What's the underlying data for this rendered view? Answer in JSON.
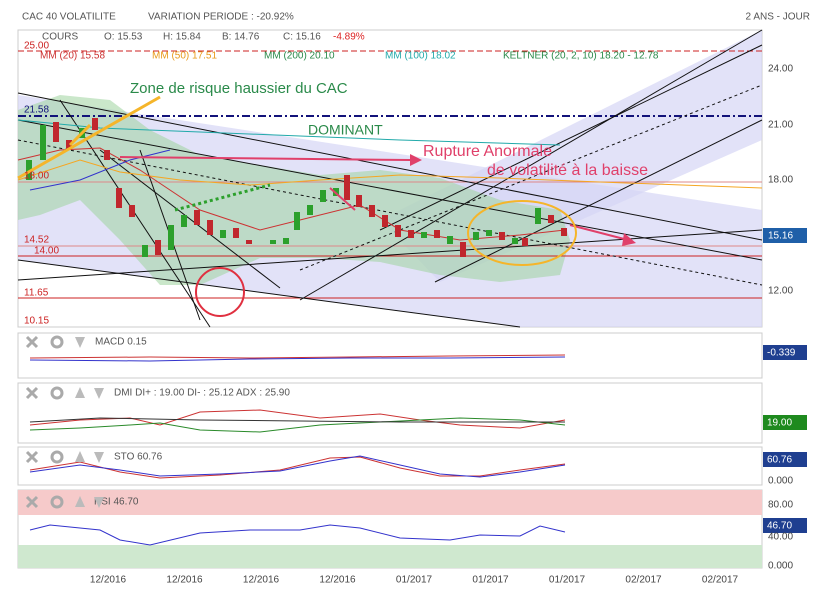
{
  "header": {
    "title": "CAC 40 VOLATILITE",
    "variation": "VARIATION PERIODE : -20.92%",
    "period": "2 ANS - JOUR"
  },
  "legend": {
    "cours": "COURS",
    "open": "O: 15.53",
    "high": "H: 15.84",
    "low": "B: 14.76",
    "close": "C: 15.16",
    "change": "-4.89%",
    "ma20": "MM (20) 15.58",
    "ma50": "MM (50) 17.51",
    "ma200": "MM (200) 20.10",
    "ma100": "MM (100) 18.02",
    "keltner": "KELTNER (20, 2, 10) 18.20 - 12.78"
  },
  "levels": [
    "25.00",
    "21.58",
    "18.00",
    "14.52",
    "14.00",
    "11.65",
    "10.15"
  ],
  "price_axis": [
    "24.00",
    "21.00",
    "18.00",
    "15.16",
    "12.00"
  ],
  "annotations": [
    "Zone de risque haussier du CAC",
    "DOMINANT",
    "Rupture Anormale",
    "de volatilité à la baisse"
  ],
  "panels": {
    "macd": {
      "label": "MACD 0.15",
      "value": "-0.339"
    },
    "dmi": {
      "label": "DMI DI+ : 19.00 DI- : 25.12 ADX : 25.90",
      "value": "19.00"
    },
    "sto": {
      "label": "STO 60.76",
      "value": "60.76",
      "axis": "0.000"
    },
    "rsi": {
      "label": "RSI 46.70",
      "value": "46.70",
      "axis": [
        "80.00",
        "40.00",
        "0.000"
      ]
    }
  },
  "x_axis": [
    "12/2016",
    "12/2016",
    "12/2016",
    "12/2016",
    "01/2017",
    "01/2017",
    "01/2017",
    "02/2017",
    "02/2017"
  ]
}
